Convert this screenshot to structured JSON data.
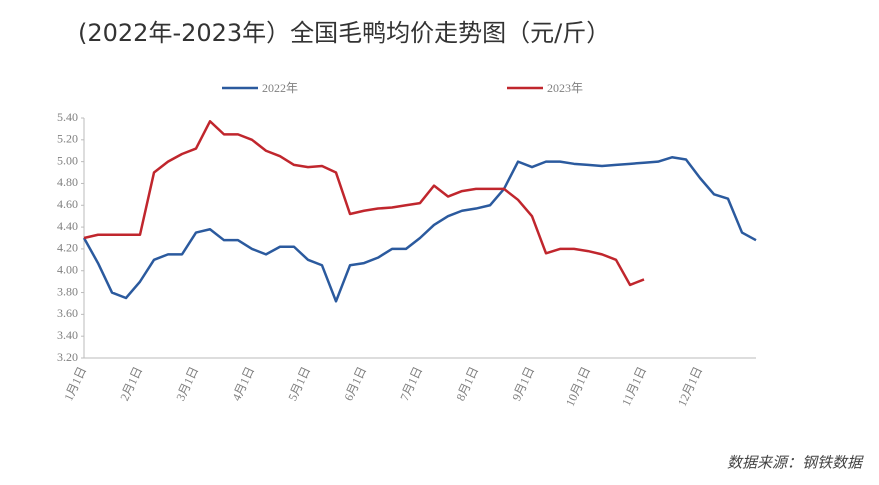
{
  "chart_data": {
    "type": "line",
    "title": "(2022年-2023年）全国毛鸭均价走势图（元/斤）",
    "source": "数据来源：钢铁数据",
    "categories": [
      "1月1日",
      null,
      null,
      null,
      "2月1日",
      null,
      null,
      null,
      "3月1日",
      null,
      null,
      null,
      "4月1日",
      null,
      null,
      null,
      "5月1日",
      null,
      null,
      null,
      "6月1日",
      null,
      null,
      null,
      "7月1日",
      null,
      null,
      null,
      "8月1日",
      null,
      null,
      null,
      "9月1日",
      null,
      null,
      null,
      "10月1日",
      null,
      null,
      null,
      "11月1日",
      null,
      null,
      null,
      "12月1日",
      null,
      null,
      null,
      null
    ],
    "series": [
      {
        "name": "2022年",
        "color": "#2b5a9e",
        "values": [
          4.3,
          4.07,
          3.8,
          3.75,
          3.9,
          4.1,
          4.15,
          4.15,
          4.35,
          4.38,
          4.28,
          4.28,
          4.2,
          4.15,
          4.22,
          4.22,
          4.1,
          4.05,
          3.72,
          4.05,
          4.07,
          4.12,
          4.2,
          4.2,
          4.3,
          4.42,
          4.5,
          4.55,
          4.57,
          4.6,
          4.75,
          5.0,
          4.95,
          5.0,
          5.0,
          4.98,
          4.97,
          4.96,
          4.97,
          4.98,
          4.99,
          5.0,
          5.04,
          5.02,
          4.85,
          4.7,
          4.66,
          4.35,
          4.28
        ]
      },
      {
        "name": "2023年",
        "color": "#c0262d",
        "values": [
          4.3,
          4.33,
          4.33,
          4.33,
          4.33,
          4.9,
          5.0,
          5.07,
          5.12,
          5.37,
          5.25,
          5.25,
          5.2,
          5.1,
          5.05,
          4.97,
          4.95,
          4.96,
          4.9,
          4.52,
          4.55,
          4.57,
          4.58,
          4.6,
          4.62,
          4.78,
          4.68,
          4.73,
          4.75,
          4.75,
          4.75,
          4.65,
          4.5,
          4.16,
          4.2,
          4.2,
          4.18,
          4.15,
          4.1,
          3.87,
          3.92,
          null,
          null,
          null,
          null,
          null,
          null,
          null,
          null
        ]
      }
    ],
    "ylim": [
      3.2,
      5.4
    ],
    "yticks": [
      {
        "value": 3.2,
        "label": "3.20"
      },
      {
        "value": 3.4,
        "label": "3.40"
      },
      {
        "value": 3.6,
        "label": "3.60"
      },
      {
        "value": 3.8,
        "label": "3.80"
      },
      {
        "value": 4.0,
        "label": "4.00"
      },
      {
        "value": 4.2,
        "label": "4.20"
      },
      {
        "value": 4.4,
        "label": "4.40"
      },
      {
        "value": 4.6,
        "label": "4.60"
      },
      {
        "value": 4.8,
        "label": "4.80"
      },
      {
        "value": 5.0,
        "label": "5.00"
      },
      {
        "value": 5.2,
        "label": "5.20"
      },
      {
        "value": 5.4,
        "label": "5.40"
      }
    ],
    "grid": false
  }
}
